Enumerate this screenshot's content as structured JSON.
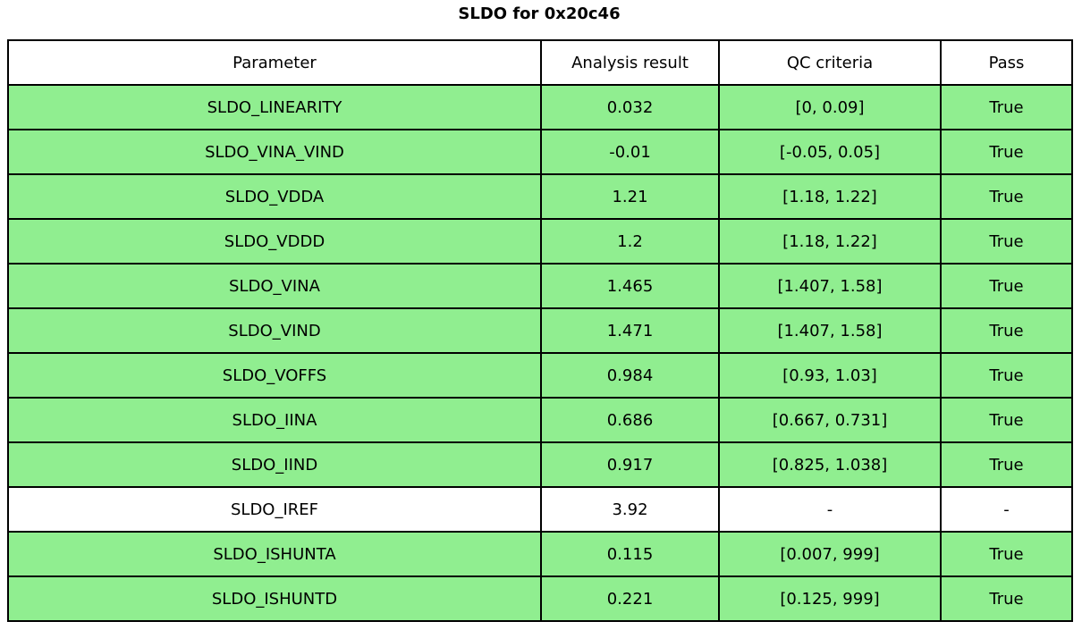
{
  "chart_data": {
    "type": "table",
    "title": "SLDO for 0x20c46",
    "columns": [
      "Parameter",
      "Analysis result",
      "QC criteria",
      "Pass"
    ],
    "rows": [
      {
        "parameter": "SLDO_LINEARITY",
        "result": "0.032",
        "criteria": "[0, 0.09]",
        "pass": "True",
        "highlight": true
      },
      {
        "parameter": "SLDO_VINA_VIND",
        "result": "-0.01",
        "criteria": "[-0.05, 0.05]",
        "pass": "True",
        "highlight": true
      },
      {
        "parameter": "SLDO_VDDA",
        "result": "1.21",
        "criteria": "[1.18, 1.22]",
        "pass": "True",
        "highlight": true
      },
      {
        "parameter": "SLDO_VDDD",
        "result": "1.2",
        "criteria": "[1.18, 1.22]",
        "pass": "True",
        "highlight": true
      },
      {
        "parameter": "SLDO_VINA",
        "result": "1.465",
        "criteria": "[1.407, 1.58]",
        "pass": "True",
        "highlight": true
      },
      {
        "parameter": "SLDO_VIND",
        "result": "1.471",
        "criteria": "[1.407, 1.58]",
        "pass": "True",
        "highlight": true
      },
      {
        "parameter": "SLDO_VOFFS",
        "result": "0.984",
        "criteria": "[0.93, 1.03]",
        "pass": "True",
        "highlight": true
      },
      {
        "parameter": "SLDO_IINA",
        "result": "0.686",
        "criteria": "[0.667, 0.731]",
        "pass": "True",
        "highlight": true
      },
      {
        "parameter": "SLDO_IIND",
        "result": "0.917",
        "criteria": "[0.825, 1.038]",
        "pass": "True",
        "highlight": true
      },
      {
        "parameter": "SLDO_IREF",
        "result": "3.92",
        "criteria": "-",
        "pass": "-",
        "highlight": false
      },
      {
        "parameter": "SLDO_ISHUNTA",
        "result": "0.115",
        "criteria": "[0.007, 999]",
        "pass": "True",
        "highlight": true
      },
      {
        "parameter": "SLDO_ISHUNTD",
        "result": "0.221",
        "criteria": "[0.125, 999]",
        "pass": "True",
        "highlight": true
      }
    ],
    "colors": {
      "pass_row_background": "#90EE90",
      "neutral_row_background": "#ffffff",
      "grid_border": "#000000",
      "text": "#000000"
    },
    "layout_hints": {
      "title_position": "top-center",
      "grid": "on"
    }
  }
}
